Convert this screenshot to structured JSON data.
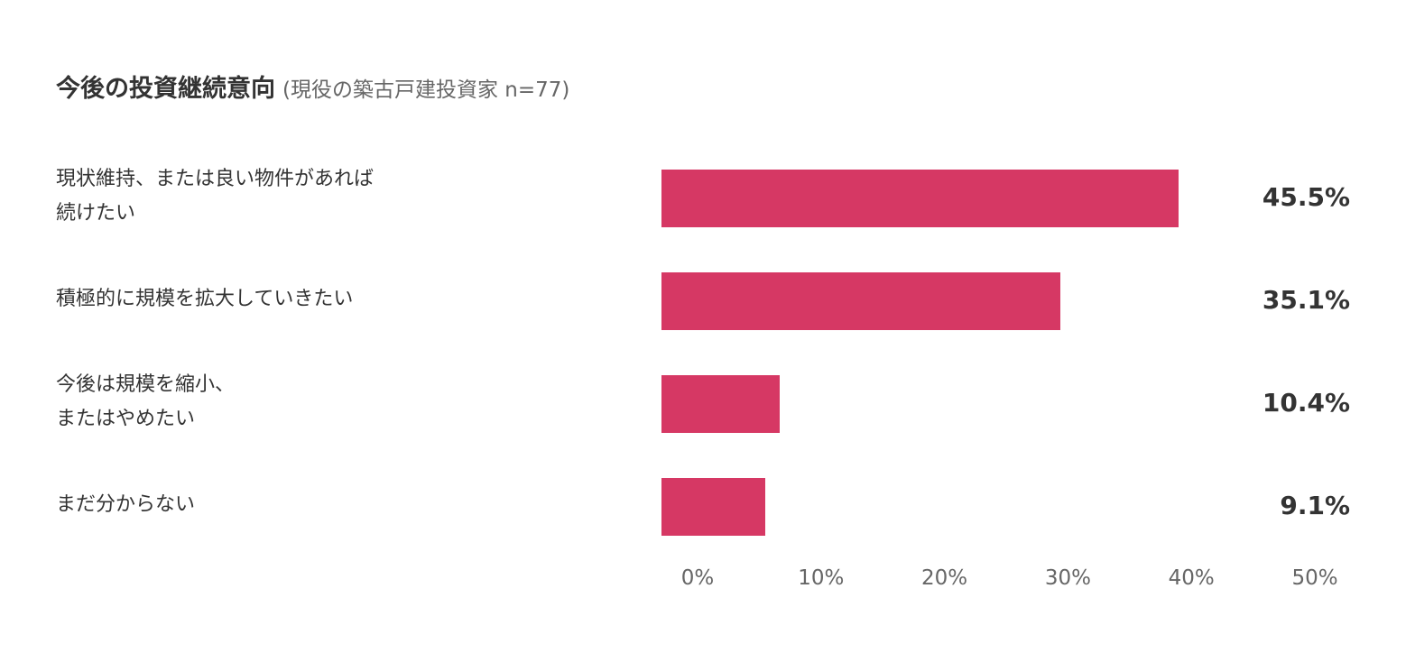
{
  "chart_data": {
    "type": "bar",
    "orientation": "horizontal",
    "title": "今後の投資継続意向",
    "subtitle": "(現役の築古戸建投資家 n=77)",
    "categories": [
      "現状維持、または良い物件があれば\n続けたい",
      "積極的に規模を拡大していきたい",
      "今後は規模を縮小、\nまたはやめたい",
      "まだ分からない"
    ],
    "values": [
      45.5,
      35.1,
      10.4,
      9.1
    ],
    "value_labels": [
      "45.5%",
      "35.1%",
      "10.4%",
      "9.1%"
    ],
    "xlim": [
      0,
      50
    ],
    "x_ticks": [
      "0%",
      "10%",
      "20%",
      "30%",
      "40%",
      "50%"
    ],
    "bar_color": "#d63864",
    "grid": false,
    "legend": "none"
  }
}
